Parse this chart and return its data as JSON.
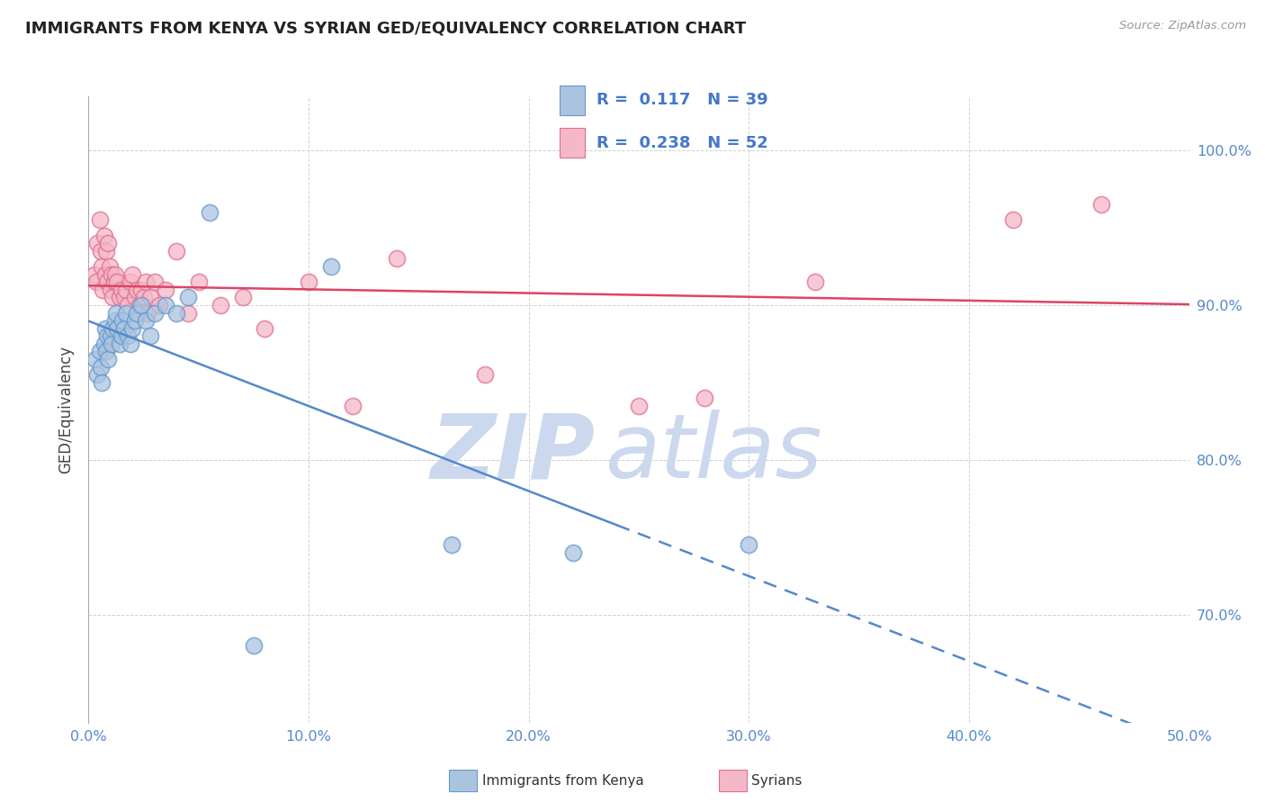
{
  "title": "IMMIGRANTS FROM KENYA VS SYRIAN GED/EQUIVALENCY CORRELATION CHART",
  "source_text": "Source: ZipAtlas.com",
  "ylabel": "GED/Equivalency",
  "xlim": [
    0.0,
    50.0
  ],
  "ylim": [
    63.0,
    103.5
  ],
  "xticks": [
    0.0,
    10.0,
    20.0,
    30.0,
    40.0,
    50.0
  ],
  "yticks": [
    70.0,
    80.0,
    90.0,
    100.0
  ],
  "ytick_labels": [
    "70.0%",
    "80.0%",
    "90.0%",
    "100.0%"
  ],
  "xtick_labels": [
    "0.0%",
    "10.0%",
    "20.0%",
    "30.0%",
    "40.0%",
    "50.0%"
  ],
  "kenya_color": "#aac4e0",
  "kenya_edge": "#6699cc",
  "syria_color": "#f5b8c8",
  "syria_edge": "#e07090",
  "trend_kenya_color": "#5588cc",
  "trend_syria_color": "#dd4466",
  "legend_R_kenya": "0.117",
  "legend_N_kenya": "39",
  "legend_R_syria": "0.238",
  "legend_N_syria": "52",
  "watermark_zip": "ZIP",
  "watermark_atlas": "atlas",
  "watermark_color": "#ccd8ee",
  "kenya_x": [
    0.3,
    0.4,
    0.5,
    0.55,
    0.6,
    0.7,
    0.75,
    0.8,
    0.85,
    0.9,
    1.0,
    1.05,
    1.1,
    1.2,
    1.25,
    1.3,
    1.4,
    1.5,
    1.55,
    1.6,
    1.7,
    1.8,
    1.9,
    2.0,
    2.1,
    2.2,
    2.4,
    2.6,
    2.8,
    3.0,
    3.5,
    4.0,
    4.5,
    5.5,
    7.5,
    11.0,
    16.5,
    22.0,
    30.0
  ],
  "kenya_y": [
    86.5,
    85.5,
    87.0,
    86.0,
    85.0,
    87.5,
    88.5,
    87.0,
    88.0,
    86.5,
    88.0,
    87.5,
    88.5,
    89.0,
    89.5,
    88.5,
    87.5,
    88.0,
    89.0,
    88.5,
    89.5,
    88.0,
    87.5,
    88.5,
    89.0,
    89.5,
    90.0,
    89.0,
    88.0,
    89.5,
    90.0,
    89.5,
    90.5,
    96.0,
    68.0,
    92.5,
    74.5,
    74.0,
    74.5
  ],
  "syria_x": [
    0.25,
    0.35,
    0.4,
    0.5,
    0.55,
    0.6,
    0.65,
    0.7,
    0.75,
    0.8,
    0.85,
    0.9,
    0.95,
    1.0,
    1.05,
    1.1,
    1.15,
    1.2,
    1.3,
    1.4,
    1.5,
    1.6,
    1.7,
    1.8,
    1.9,
    2.0,
    2.1,
    2.2,
    2.3,
    2.4,
    2.5,
    2.6,
    2.7,
    2.8,
    3.0,
    3.2,
    3.5,
    4.0,
    4.5,
    5.0,
    6.0,
    7.0,
    8.0,
    10.0,
    12.0,
    14.0,
    18.0,
    25.0,
    28.0,
    33.0,
    42.0,
    46.0
  ],
  "syria_y": [
    92.0,
    91.5,
    94.0,
    95.5,
    93.5,
    92.5,
    91.0,
    94.5,
    92.0,
    93.5,
    91.5,
    94.0,
    92.5,
    91.0,
    92.0,
    90.5,
    91.5,
    92.0,
    91.5,
    90.5,
    91.0,
    90.5,
    91.0,
    90.0,
    91.5,
    92.0,
    90.5,
    91.0,
    90.0,
    91.0,
    90.5,
    91.5,
    89.5,
    90.5,
    91.5,
    90.0,
    91.0,
    93.5,
    89.5,
    91.5,
    90.0,
    90.5,
    88.5,
    91.5,
    83.5,
    93.0,
    85.5,
    83.5,
    84.0,
    91.5,
    95.5,
    96.5
  ]
}
